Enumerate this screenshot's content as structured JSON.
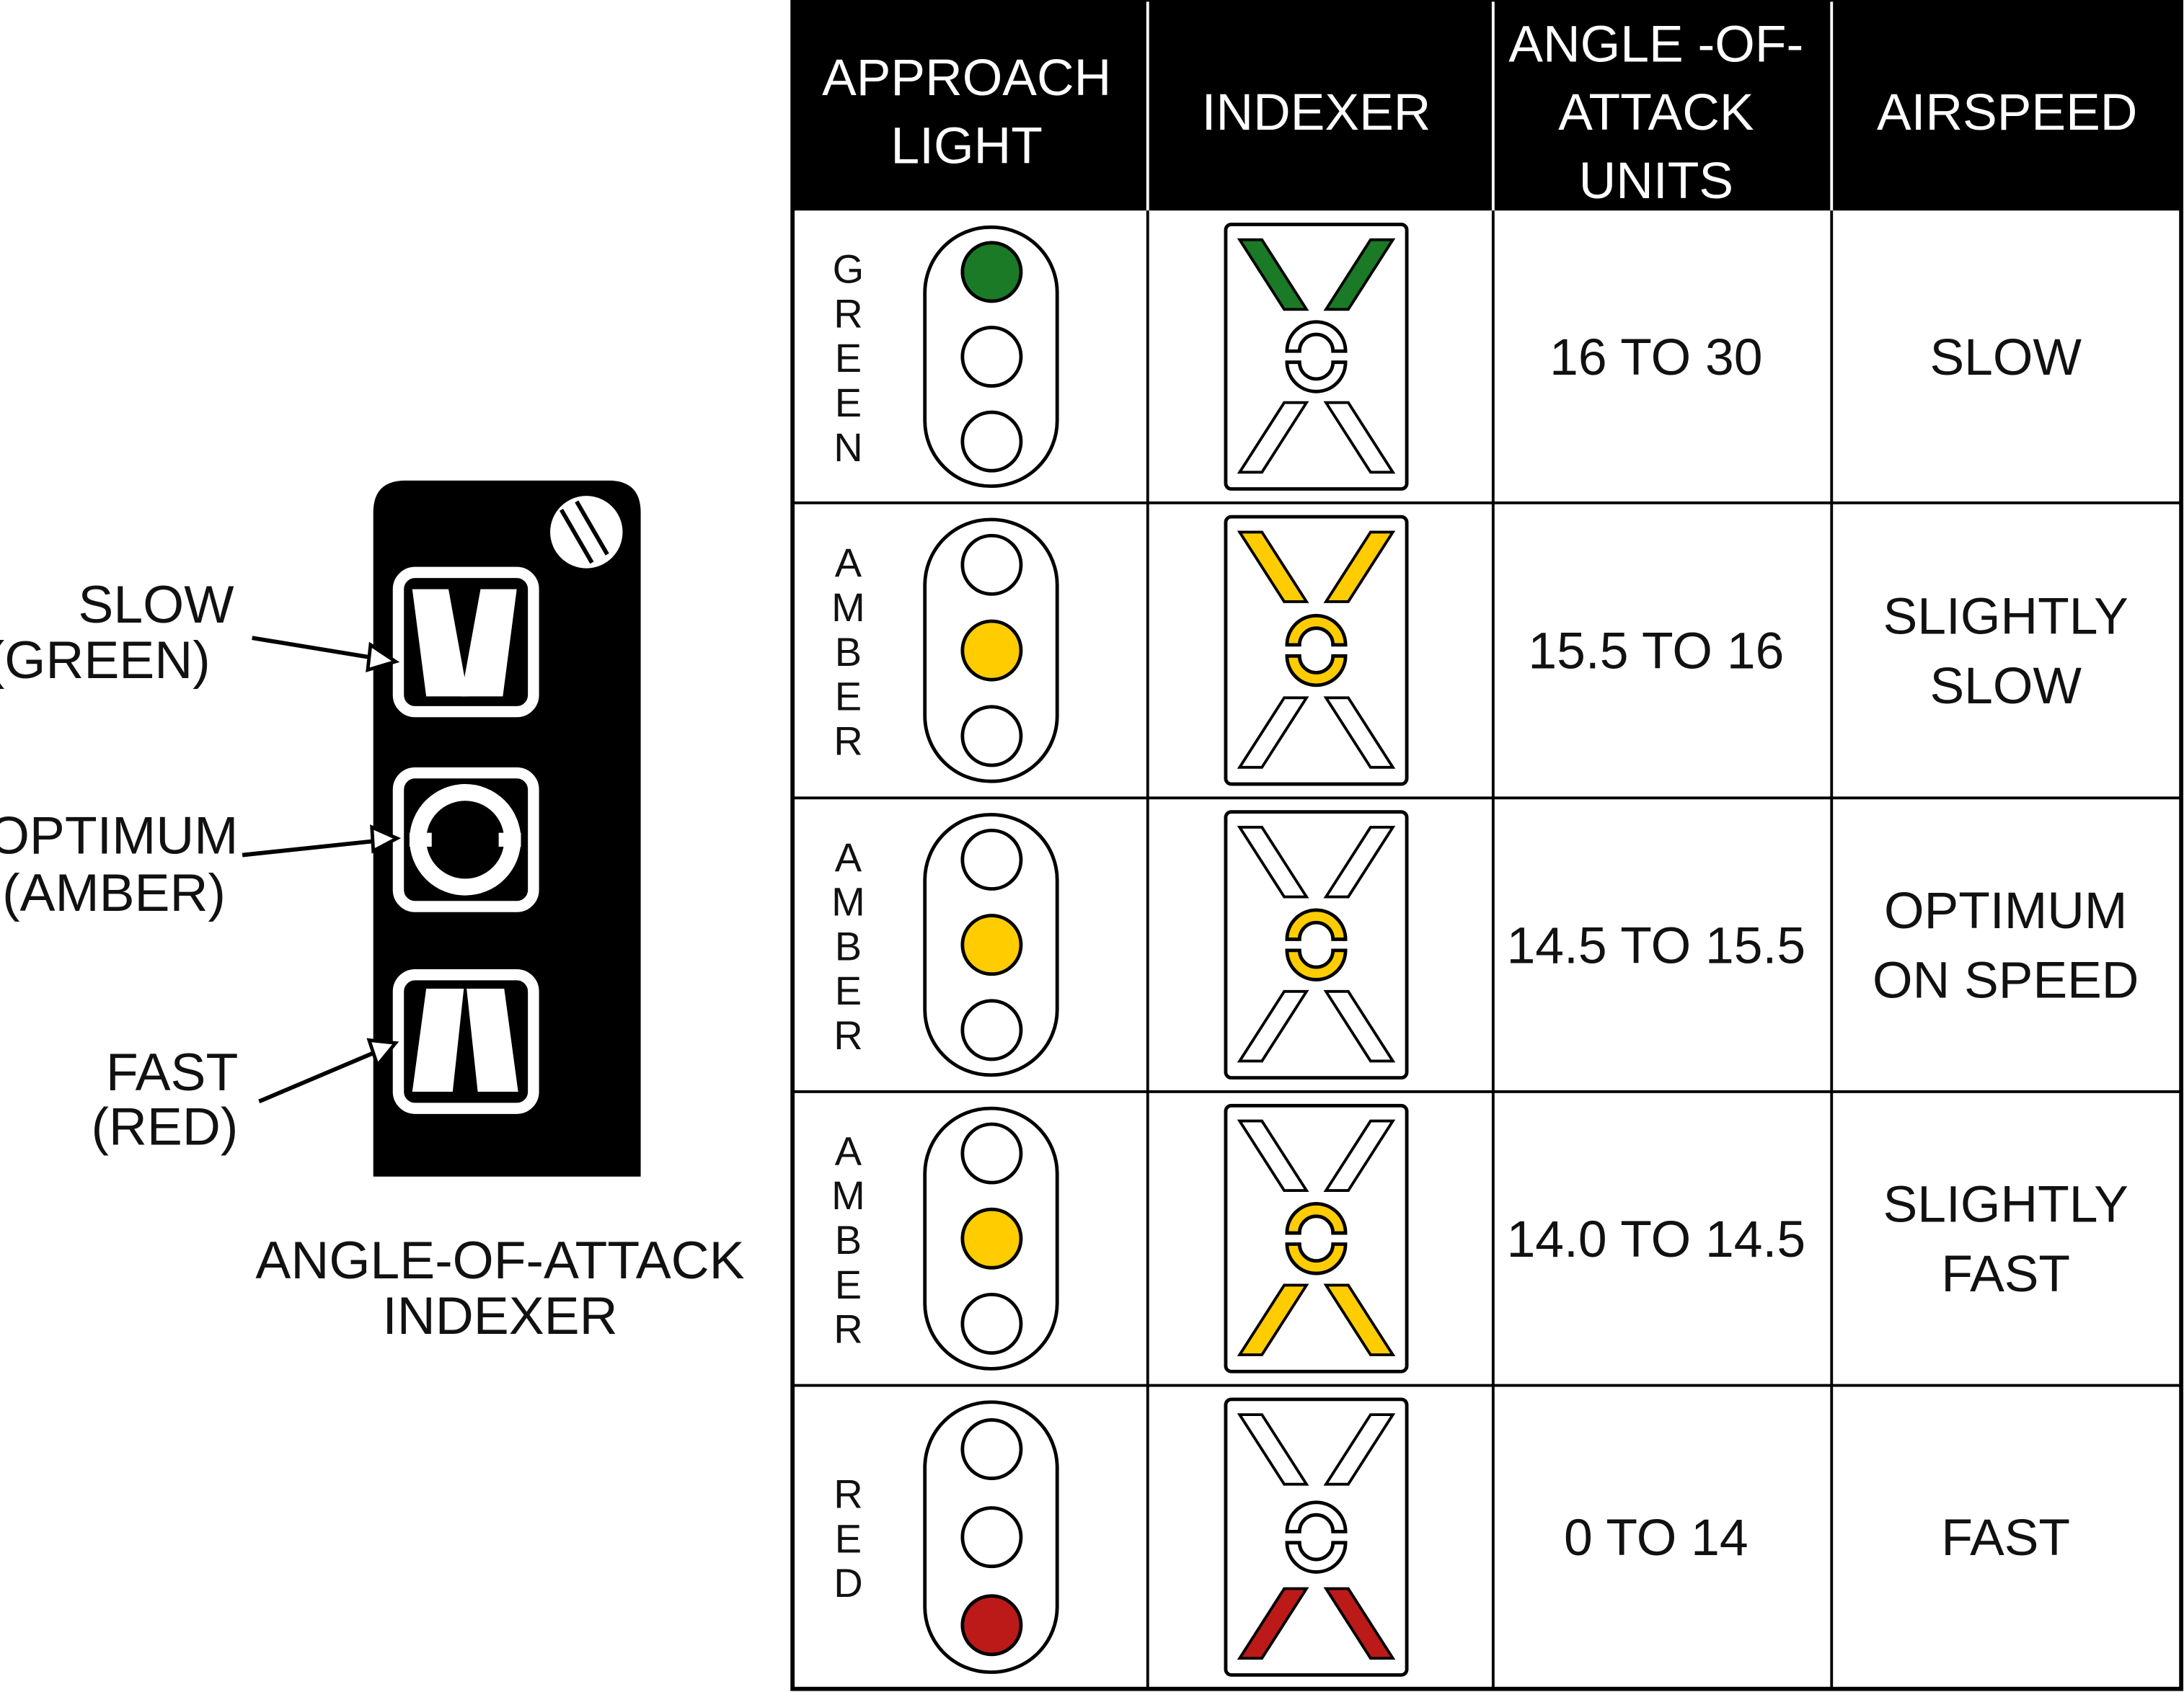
{
  "indexer_panel": {
    "labels": [
      {
        "line1": "SLOW",
        "line2": "(GREEN)"
      },
      {
        "line1": "OPTIMUM",
        "line2": "(AMBER)"
      },
      {
        "line1": "FAST",
        "line2": "(RED)"
      }
    ],
    "caption_line1": "ANGLE-OF-ATTACK",
    "caption_line2": "INDEXER"
  },
  "table": {
    "headers": [
      {
        "lines": [
          "APPROACH",
          "LIGHT"
        ]
      },
      {
        "lines": [
          "INDEXER"
        ]
      },
      {
        "lines": [
          "ANGLE -OF-",
          "ATTACK",
          "UNITS"
        ]
      },
      {
        "lines": [
          "AIRSPEED"
        ]
      }
    ],
    "rows": [
      {
        "light_letters": [
          "G",
          "R",
          "E",
          "E",
          "N"
        ],
        "lit": "top",
        "indexer": "slow",
        "units": "16 TO 30",
        "airspeed": [
          "SLOW"
        ]
      },
      {
        "light_letters": [
          "A",
          "M",
          "B",
          "E",
          "R"
        ],
        "lit": "middle",
        "indexer": "slightly-slow",
        "units": "15.5 TO 16",
        "airspeed": [
          "SLIGHTLY",
          "SLOW"
        ]
      },
      {
        "light_letters": [
          "A",
          "M",
          "B",
          "E",
          "R"
        ],
        "lit": "middle",
        "indexer": "optimum",
        "units": "14.5 TO 15.5",
        "airspeed": [
          "OPTIMUM",
          "ON SPEED"
        ]
      },
      {
        "light_letters": [
          "A",
          "M",
          "B",
          "E",
          "R"
        ],
        "lit": "middle",
        "indexer": "slightly-fast",
        "units": "14.0 TO 14.5",
        "airspeed": [
          "SLIGHTLY",
          "FAST"
        ]
      },
      {
        "light_letters": [
          "R",
          "E",
          "D"
        ],
        "lit": "bottom",
        "indexer": "fast",
        "units": "0 TO 14",
        "airspeed": [
          "FAST"
        ]
      }
    ]
  },
  "colors": {
    "green": "#1a7a25",
    "amber": "#ffcc00",
    "red": "#bb1a18",
    "black": "#000000",
    "white": "#ffffff"
  }
}
